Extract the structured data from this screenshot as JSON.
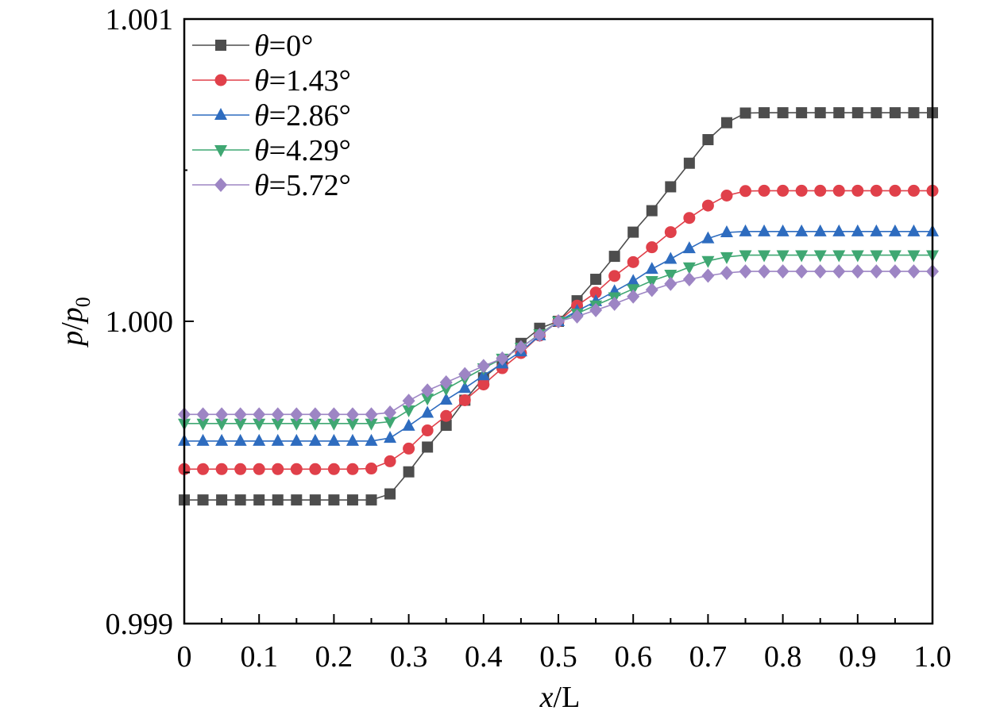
{
  "chart_data": {
    "type": "line",
    "xlabel": "x/L",
    "ylabel": "p/p0",
    "xlim": [
      0,
      1.0
    ],
    "ylim": [
      0.999,
      1.001
    ],
    "x_ticks": [
      "0",
      "0.1",
      "0.2",
      "0.3",
      "0.4",
      "0.5",
      "0.6",
      "0.7",
      "0.8",
      "0.9",
      "1.0"
    ],
    "y_ticks": [
      "0.999",
      "1.000",
      "1.001"
    ],
    "y_tick_values": [
      0.999,
      1.0,
      1.001
    ],
    "grid": false,
    "legend_position": "top-left",
    "x": [
      0,
      0.025,
      0.05,
      0.075,
      0.1,
      0.125,
      0.15,
      0.175,
      0.2,
      0.225,
      0.25,
      0.275,
      0.3,
      0.325,
      0.35,
      0.375,
      0.4,
      0.425,
      0.45,
      0.475,
      0.5,
      0.525,
      0.55,
      0.575,
      0.6,
      0.625,
      0.65,
      0.675,
      0.7,
      0.725,
      0.75,
      0.775,
      0.8,
      0.825,
      0.85,
      0.875,
      0.9,
      0.925,
      0.95,
      0.975,
      1.0
    ],
    "series": [
      {
        "name": "θ=0°",
        "color": "#4d4d4d",
        "marker": "square",
        "values": [
          0.999409,
          0.999409,
          0.999409,
          0.999409,
          0.999409,
          0.999409,
          0.999409,
          0.999409,
          0.999409,
          0.999409,
          0.999409,
          0.999429,
          0.999502,
          0.999584,
          0.999656,
          0.999739,
          0.999813,
          0.999864,
          0.999927,
          0.999977,
          1.0,
          1.000068,
          1.000139,
          1.000215,
          1.000295,
          1.000366,
          1.000445,
          1.000523,
          1.000601,
          1.000657,
          1.000689,
          1.00069,
          1.00069,
          1.00069,
          1.00069,
          1.00069,
          1.00069,
          1.00069,
          1.00069,
          1.00069,
          1.00069
        ]
      },
      {
        "name": "θ=1.43°",
        "color": "#e0404a",
        "marker": "circle",
        "values": [
          0.999511,
          0.999511,
          0.999511,
          0.999511,
          0.999511,
          0.999511,
          0.999511,
          0.999511,
          0.999511,
          0.999511,
          0.999513,
          0.999537,
          0.999579,
          0.999639,
          0.999687,
          0.999739,
          0.999791,
          0.999845,
          0.999895,
          0.999953,
          1.0,
          1.000052,
          1.000095,
          1.00015,
          1.000196,
          1.000245,
          1.000295,
          1.000342,
          1.000383,
          1.000416,
          1.000431,
          1.000432,
          1.000432,
          1.000432,
          1.000432,
          1.000432,
          1.000432,
          1.000432,
          1.000432,
          1.000432,
          1.000432
        ]
      },
      {
        "name": "θ=2.86°",
        "color": "#2e6cbf",
        "marker": "triangle-up",
        "values": [
          0.999604,
          0.999604,
          0.999604,
          0.999604,
          0.999604,
          0.999604,
          0.999604,
          0.999604,
          0.999604,
          0.999604,
          0.999604,
          0.999614,
          0.999654,
          0.999697,
          0.99974,
          0.999779,
          0.999821,
          0.99986,
          0.9999,
          0.999953,
          1.0,
          1.000034,
          1.000066,
          1.000099,
          1.000133,
          1.000173,
          1.000206,
          1.000241,
          1.000274,
          1.000294,
          1.000297,
          1.000297,
          1.000297,
          1.000297,
          1.000297,
          1.000297,
          1.000297,
          1.000297,
          1.000297,
          1.000297,
          1.000297
        ]
      },
      {
        "name": "θ=4.29°",
        "color": "#3fa772",
        "marker": "triangle-down",
        "values": [
          0.999662,
          0.999662,
          0.999662,
          0.999662,
          0.999662,
          0.999662,
          0.999662,
          0.999662,
          0.999662,
          0.999662,
          0.999662,
          0.999668,
          0.999706,
          0.999745,
          0.999776,
          0.999811,
          0.999845,
          0.999877,
          0.999913,
          0.999958,
          1.0,
          1.000026,
          1.000053,
          1.00008,
          1.000107,
          1.000134,
          1.000155,
          1.000179,
          1.0002,
          1.000213,
          1.000219,
          1.000219,
          1.000219,
          1.000219,
          1.000219,
          1.000219,
          1.000219,
          1.000219,
          1.000219,
          1.000219,
          1.000219
        ]
      },
      {
        "name": "θ=5.72°",
        "color": "#9d85c4",
        "marker": "diamond",
        "values": [
          0.999692,
          0.999692,
          0.999692,
          0.999692,
          0.999692,
          0.999692,
          0.999692,
          0.999692,
          0.999692,
          0.999692,
          0.999692,
          0.999698,
          0.999737,
          0.999771,
          0.999798,
          0.999825,
          0.999852,
          0.999877,
          0.999914,
          0.999955,
          1.0,
          1.000016,
          1.000037,
          1.000058,
          1.000082,
          1.000104,
          1.000124,
          1.000139,
          1.000151,
          1.00016,
          1.000165,
          1.000165,
          1.000165,
          1.000165,
          1.000165,
          1.000165,
          1.000165,
          1.000165,
          1.000165,
          1.000165,
          1.000165
        ]
      }
    ]
  }
}
